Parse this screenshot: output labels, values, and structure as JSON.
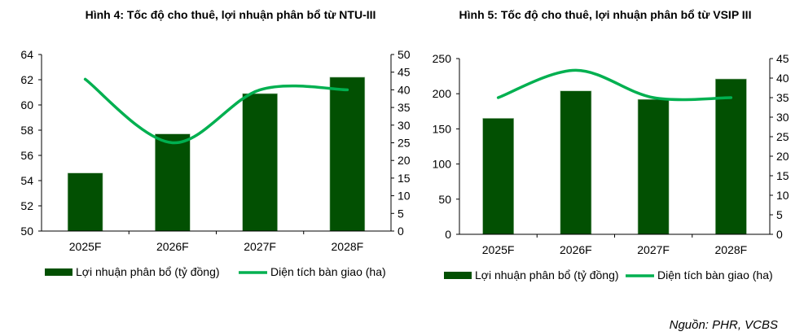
{
  "colors": {
    "bar": "#025002",
    "line": "#00b050",
    "axis": "#000000"
  },
  "source": "Nguồn: PHR, VCBS",
  "chart_data": [
    {
      "type": "bar+line",
      "title": "Hình 4: Tốc độ cho thuê, lợi nhuận phân bổ từ NTU-III",
      "categories": [
        "2025F",
        "2026F",
        "2027F",
        "2028F"
      ],
      "series": [
        {
          "name": "Lợi nhuận phân bổ (tỷ đồng)",
          "type": "bar",
          "axis": "left",
          "values": [
            54.6,
            57.7,
            60.9,
            62.2
          ]
        },
        {
          "name": "Diện tích bàn giao (ha)",
          "type": "line",
          "axis": "right",
          "values": [
            43,
            25,
            40,
            40
          ]
        }
      ],
      "ylim_left": [
        50,
        64
      ],
      "yticks_left": [
        "50",
        "52",
        "54",
        "56",
        "58",
        "60",
        "62",
        "64"
      ],
      "ylim_right": [
        0,
        50
      ],
      "yticks_right": [
        "0",
        "5",
        "10",
        "15",
        "20",
        "25",
        "30",
        "35",
        "40",
        "45",
        "50"
      ],
      "grid": false,
      "legend_position": "bottom"
    },
    {
      "type": "bar+line",
      "title": "Hình 5: Tốc độ cho thuê, lợi nhuận phân bổ từ VSIP III",
      "categories": [
        "2025F",
        "2026F",
        "2027F",
        "2028F"
      ],
      "series": [
        {
          "name": "Lợi nhuận phân bổ (tỷ đồng)",
          "type": "bar",
          "axis": "left",
          "values": [
            165,
            204,
            192,
            221
          ]
        },
        {
          "name": "Diện tích bàn giao (ha)",
          "type": "line",
          "axis": "right",
          "values": [
            35,
            42,
            35,
            35
          ]
        }
      ],
      "ylim_left": [
        0,
        250
      ],
      "yticks_left": [
        "0",
        "50",
        "100",
        "150",
        "200",
        "250"
      ],
      "ylim_right": [
        0,
        45
      ],
      "yticks_right": [
        "0",
        "5",
        "10",
        "15",
        "20",
        "25",
        "30",
        "35",
        "40",
        "45"
      ],
      "grid": false,
      "legend_position": "bottom"
    }
  ]
}
